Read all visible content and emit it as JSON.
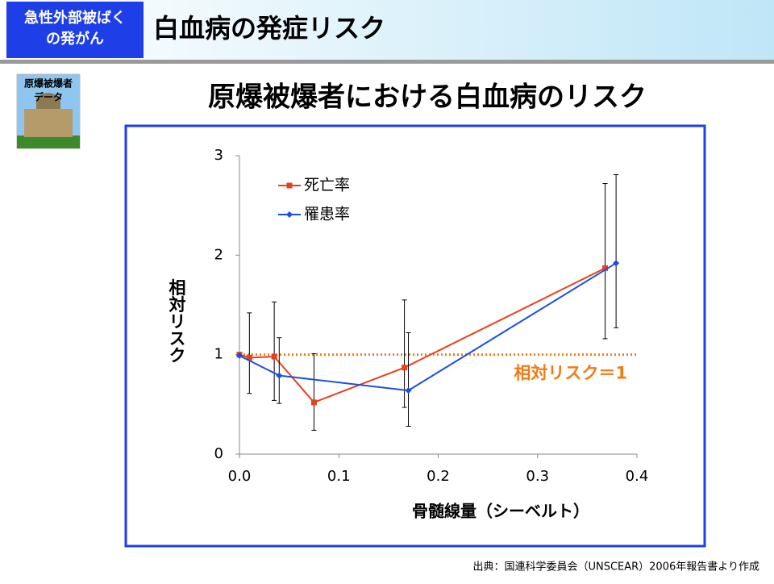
{
  "header": {
    "section": [
      "急性外部被ばく",
      "の発がん"
    ],
    "title": "白血病の発症リスク"
  },
  "badge": [
    "原爆被爆者",
    "データ"
  ],
  "chart_data": {
    "type": "line",
    "title": "原爆被爆者における白血病のリスク",
    "x_label": "骨髄線量（シーベルト）",
    "y_label": "相対リスク",
    "xlim": [
      0,
      0.4
    ],
    "xticks": [
      {
        "value": 0,
        "label": "0.0"
      },
      0.1,
      0.2,
      0.3,
      0.4
    ],
    "ylim": [
      0,
      3
    ],
    "yticks": [
      0,
      1,
      2,
      3
    ],
    "grid": false,
    "legend": "upper-left",
    "series": [
      {
        "name": "死亡率",
        "color": "#e8401c",
        "marker": "square",
        "x": [
          0.0,
          0.01,
          0.035,
          0.075,
          0.166,
          0.368
        ],
        "values": [
          1.0,
          0.97,
          0.98,
          0.52,
          0.87,
          1.87
        ],
        "lower": [
          null,
          0.61,
          0.54,
          0.24,
          0.47,
          1.16
        ],
        "upper": [
          null,
          1.42,
          1.53,
          1.01,
          1.55,
          2.72
        ]
      },
      {
        "name": "罹患率",
        "color": "#1a4fe0",
        "marker": "diamond",
        "x": [
          0.0,
          0.04,
          0.17,
          0.379
        ],
        "values": [
          0.99,
          0.79,
          0.64,
          1.92
        ],
        "lower": [
          null,
          0.51,
          0.28,
          1.27
        ],
        "upper": [
          null,
          1.17,
          1.22,
          2.81
        ]
      }
    ],
    "reference": {
      "value": 1,
      "label": "相対リスク＝1",
      "color": "#f07c18"
    }
  },
  "source": "出典：国連科学委員会（UNSCEAR）2006年報告書より作成"
}
